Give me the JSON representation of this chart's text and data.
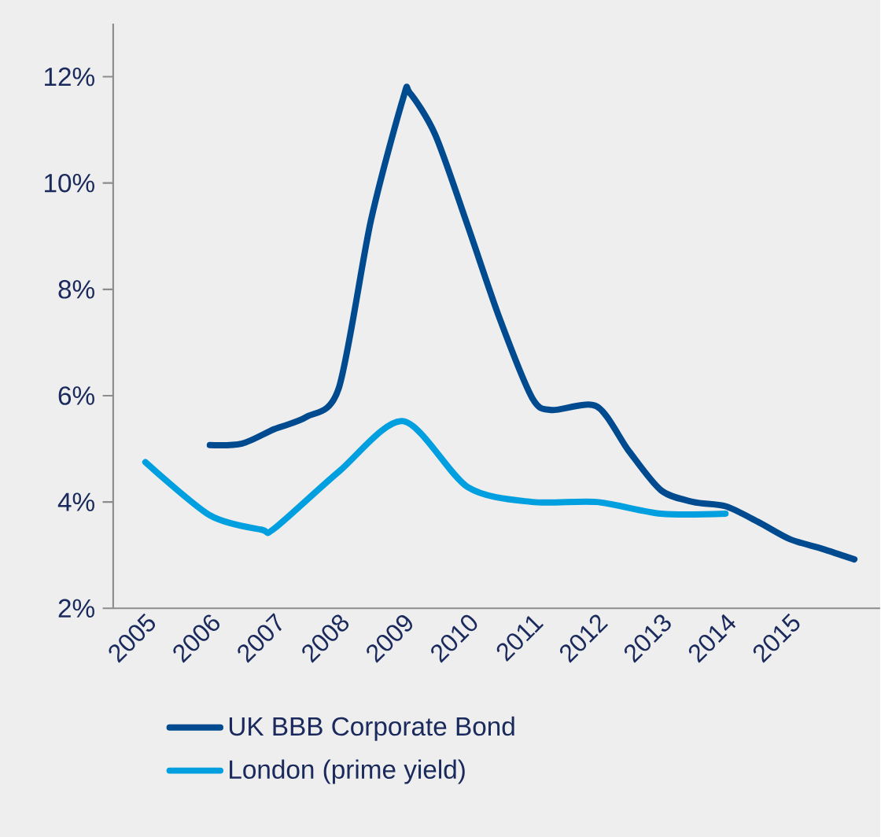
{
  "chart_data": {
    "type": "line",
    "xlim": [
      2004.5,
      2016.4
    ],
    "xticks": [
      2005,
      2006,
      2007,
      2008,
      2009,
      2010,
      2011,
      2012,
      2013,
      2014,
      2015
    ],
    "ylim": [
      2,
      13
    ],
    "yticks": [
      {
        "value": 2,
        "label": "2%"
      },
      {
        "value": 4,
        "label": "4%"
      },
      {
        "value": 6,
        "label": "6%"
      },
      {
        "value": 8,
        "label": "8%"
      },
      {
        "value": 10,
        "label": "10%"
      },
      {
        "value": 12,
        "label": "12%"
      }
    ],
    "grid": false,
    "legend": "bottom",
    "marker": "none",
    "line_style": "solid",
    "series": [
      {
        "name": "UK BBB Corporate Bond",
        "color": "#004a8f",
        "x": [
          2006,
          2006.5,
          2007,
          2007.5,
          2008,
          2008.5,
          2009,
          2009.1,
          2009.5,
          2010,
          2010.5,
          2011,
          2011.3,
          2012,
          2012.5,
          2013,
          2013.5,
          2014,
          2014.5,
          2015,
          2015.5,
          2016
        ],
        "values": [
          5.07,
          5.1,
          5.37,
          5.6,
          6.14,
          9.3,
          11.6,
          11.7,
          10.9,
          9.2,
          7.44,
          5.96,
          5.73,
          5.8,
          4.96,
          4.22,
          4.0,
          3.92,
          3.63,
          3.3,
          3.12,
          2.92
        ]
      },
      {
        "name": "London (prime yield)",
        "color": "#009fdf",
        "x": [
          2005,
          2006,
          2006.8,
          2007,
          2008,
          2009,
          2010,
          2011,
          2012,
          2013,
          2014
        ],
        "values": [
          4.75,
          3.75,
          3.48,
          3.5,
          4.57,
          5.52,
          4.28,
          4.0,
          4.0,
          3.78,
          3.78
        ]
      }
    ]
  }
}
